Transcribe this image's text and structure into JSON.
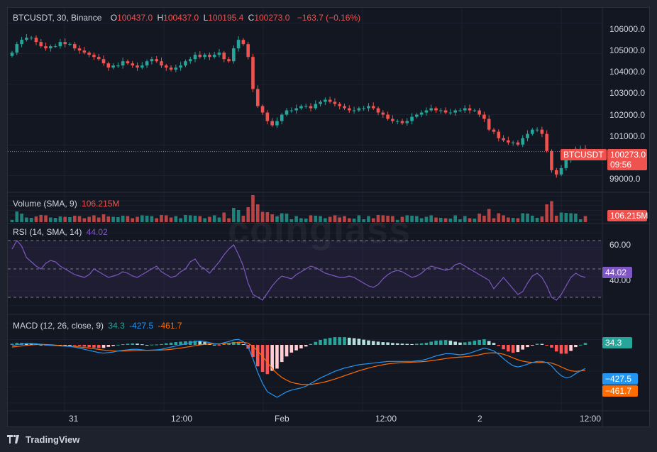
{
  "header": {
    "symbol": "BTCUSDT, 30, Binance",
    "o_label": "O",
    "o_value": "100437.0",
    "h_label": "H",
    "h_value": "100437.0",
    "l_label": "L",
    "l_value": "100195.4",
    "c_label": "C",
    "c_value": "100273.0",
    "change": "−163.7 (−0.16%)"
  },
  "price_axis": [
    "106000.0",
    "105000.0",
    "104000.0",
    "103000.0",
    "102000.0",
    "101000.0",
    "99000.0"
  ],
  "price_ticks": [
    106000,
    105000,
    104000,
    103000,
    102000,
    101000,
    99000
  ],
  "price_tags": {
    "symbol": "BTCUSDT",
    "price": "100273.0",
    "countdown": "09:56"
  },
  "volume": {
    "label": "Volume (SMA, 9)",
    "value": "106.215M",
    "tag": "106.215M"
  },
  "rsi": {
    "label": "RSI (14, SMA, 14)",
    "value": "44.02",
    "axis": [
      "60.00",
      "40.00"
    ],
    "tag": "44.02"
  },
  "macd": {
    "label": "MACD (12, 26, close, 9)",
    "hist": "34.3",
    "macd": "-427.5",
    "signal": "-461.7",
    "tag_hist": "34.3",
    "tag_macd": "−427.5",
    "tag_signal": "−461.7"
  },
  "time_axis": [
    "31",
    "12:00",
    "Feb",
    "12:00",
    "2",
    "12:00"
  ],
  "watermark": "coinglass",
  "footer": {
    "brand": "TradingView"
  },
  "colors": {
    "up": "#26a69a",
    "down": "#ef5350",
    "rsi": "#7e57c2",
    "macd": "#2196f3",
    "signal": "#ff6d00",
    "hist_up": "#26a69a",
    "hist_down": "#ff5252",
    "text": "#d1d4dc"
  },
  "chart_data": {
    "type": "candlestick",
    "symbol": "BTCUSDT",
    "interval": "30",
    "exchange": "Binance",
    "x_labels": [
      "31",
      "12:00",
      "Feb",
      "12:00",
      "2",
      "12:00"
    ],
    "ylim": [
      98700,
      106400
    ],
    "close_path": [
      104900,
      105300,
      105500,
      105600,
      105600,
      105400,
      105200,
      105100,
      105200,
      105200,
      105400,
      105300,
      105300,
      105100,
      105000,
      104900,
      104800,
      104700,
      104600,
      104400,
      104200,
      104300,
      104300,
      104500,
      104400,
      104300,
      104200,
      104300,
      104500,
      104600,
      104500,
      104300,
      104200,
      104100,
      104200,
      104300,
      104500,
      104600,
      104800,
      104700,
      104800,
      104700,
      104800,
      104900,
      104600,
      104500,
      105100,
      105500,
      105300,
      104700,
      103200,
      102400,
      102100,
      101700,
      101500,
      101700,
      102000,
      102200,
      102200,
      102300,
      102400,
      102400,
      102300,
      102500,
      102600,
      102700,
      102600,
      102500,
      102400,
      102300,
      102200,
      102200,
      102300,
      102300,
      102400,
      102300,
      102100,
      102000,
      101800,
      101700,
      101700,
      101600,
      101700,
      101900,
      102000,
      102100,
      102200,
      102300,
      102200,
      102200,
      102100,
      102100,
      102200,
      102200,
      102300,
      102200,
      102200,
      102000,
      101800,
      101300,
      101200,
      100900,
      100800,
      100700,
      100700,
      100600,
      100900,
      101100,
      101300,
      101300,
      101100,
      100300,
      99400,
      99200,
      99500,
      99900,
      100200,
      100400,
      100400,
      100300
    ],
    "volume_sma": 106.215,
    "rsi": [
      64,
      70,
      66,
      58,
      55,
      52,
      50,
      54,
      56,
      55,
      52,
      50,
      48,
      46,
      45,
      44,
      46,
      50,
      48,
      46,
      44,
      45,
      46,
      48,
      47,
      45,
      44,
      46,
      48,
      50,
      52,
      48,
      46,
      44,
      45,
      48,
      50,
      55,
      57,
      52,
      50,
      47,
      51,
      55,
      60,
      64,
      67,
      60,
      52,
      40,
      32,
      30,
      28,
      33,
      38,
      42,
      45,
      44,
      43,
      46,
      48,
      50,
      52,
      51,
      49,
      47,
      46,
      45,
      44,
      44,
      45,
      44,
      42,
      40,
      38,
      37,
      39,
      43,
      46,
      48,
      49,
      48,
      46,
      44,
      45,
      47,
      50,
      52,
      51,
      50,
      49,
      50,
      53,
      54,
      52,
      50,
      48,
      46,
      44,
      42,
      36,
      40,
      44,
      40,
      36,
      32,
      34,
      40,
      45,
      47,
      44,
      38,
      30,
      28,
      32,
      38,
      44,
      47,
      45,
      44
    ],
    "rsi_levels": [
      70,
      50,
      30
    ],
    "macd_line": [
      -20,
      5,
      15,
      20,
      25,
      20,
      10,
      0,
      -10,
      -15,
      -20,
      -25,
      -30,
      -40,
      -60,
      -80,
      -100,
      -120,
      -140,
      -150,
      -140,
      -130,
      -110,
      -100,
      -90,
      -80,
      -80,
      -90,
      -100,
      -95,
      -90,
      -80,
      -60,
      -40,
      -20,
      0,
      20,
      40,
      60,
      70,
      60,
      40,
      20,
      10,
      40,
      60,
      90,
      100,
      60,
      -40,
      -250,
      -500,
      -700,
      -850,
      -900,
      -950,
      -900,
      -850,
      -820,
      -800,
      -780,
      -750,
      -700,
      -650,
      -600,
      -560,
      -520,
      -480,
      -450,
      -420,
      -400,
      -380,
      -360,
      -350,
      -340,
      -330,
      -320,
      -310,
      -300,
      -300,
      -300,
      -300,
      -300,
      -300,
      -290,
      -280,
      -260,
      -230,
      -200,
      -180,
      -160,
      -160,
      -170,
      -180,
      -170,
      -150,
      -120,
      -90,
      -60,
      -80,
      -110,
      -170,
      -250,
      -320,
      -380,
      -400,
      -380,
      -350,
      -320,
      -300,
      -300,
      -320,
      -380,
      -480,
      -560,
      -600,
      -580,
      -520,
      -470,
      -427.5
    ],
    "signal_line": [
      -40,
      -30,
      -20,
      -10,
      0,
      5,
      8,
      6,
      2,
      -5,
      -12,
      -18,
      -24,
      -30,
      -38,
      -48,
      -58,
      -70,
      -82,
      -94,
      -104,
      -110,
      -112,
      -112,
      -110,
      -106,
      -102,
      -100,
      -100,
      -99,
      -97,
      -94,
      -88,
      -80,
      -70,
      -58,
      -44,
      -30,
      -15,
      0,
      10,
      16,
      18,
      18,
      22,
      28,
      36,
      45,
      48,
      30,
      -30,
      -110,
      -210,
      -320,
      -430,
      -520,
      -590,
      -640,
      -680,
      -700,
      -715,
      -720,
      -716,
      -705,
      -690,
      -670,
      -646,
      -620,
      -590,
      -560,
      -530,
      -500,
      -470,
      -445,
      -420,
      -398,
      -378,
      -360,
      -345,
      -335,
      -328,
      -322,
      -318,
      -314,
      -310,
      -305,
      -298,
      -288,
      -276,
      -262,
      -248,
      -236,
      -228,
      -222,
      -216,
      -208,
      -196,
      -180,
      -160,
      -148,
      -145,
      -152,
      -170,
      -200,
      -235,
      -270,
      -295,
      -310,
      -318,
      -320,
      -318,
      -318,
      -330,
      -360,
      -400,
      -440,
      -470,
      -480,
      -472,
      -461.7
    ],
    "histogram_last": 34.3,
    "last_price": 100273.0,
    "ohlc_last": {
      "open": 100437.0,
      "high": 100437.0,
      "low": 100195.4,
      "close": 100273.0
    }
  }
}
